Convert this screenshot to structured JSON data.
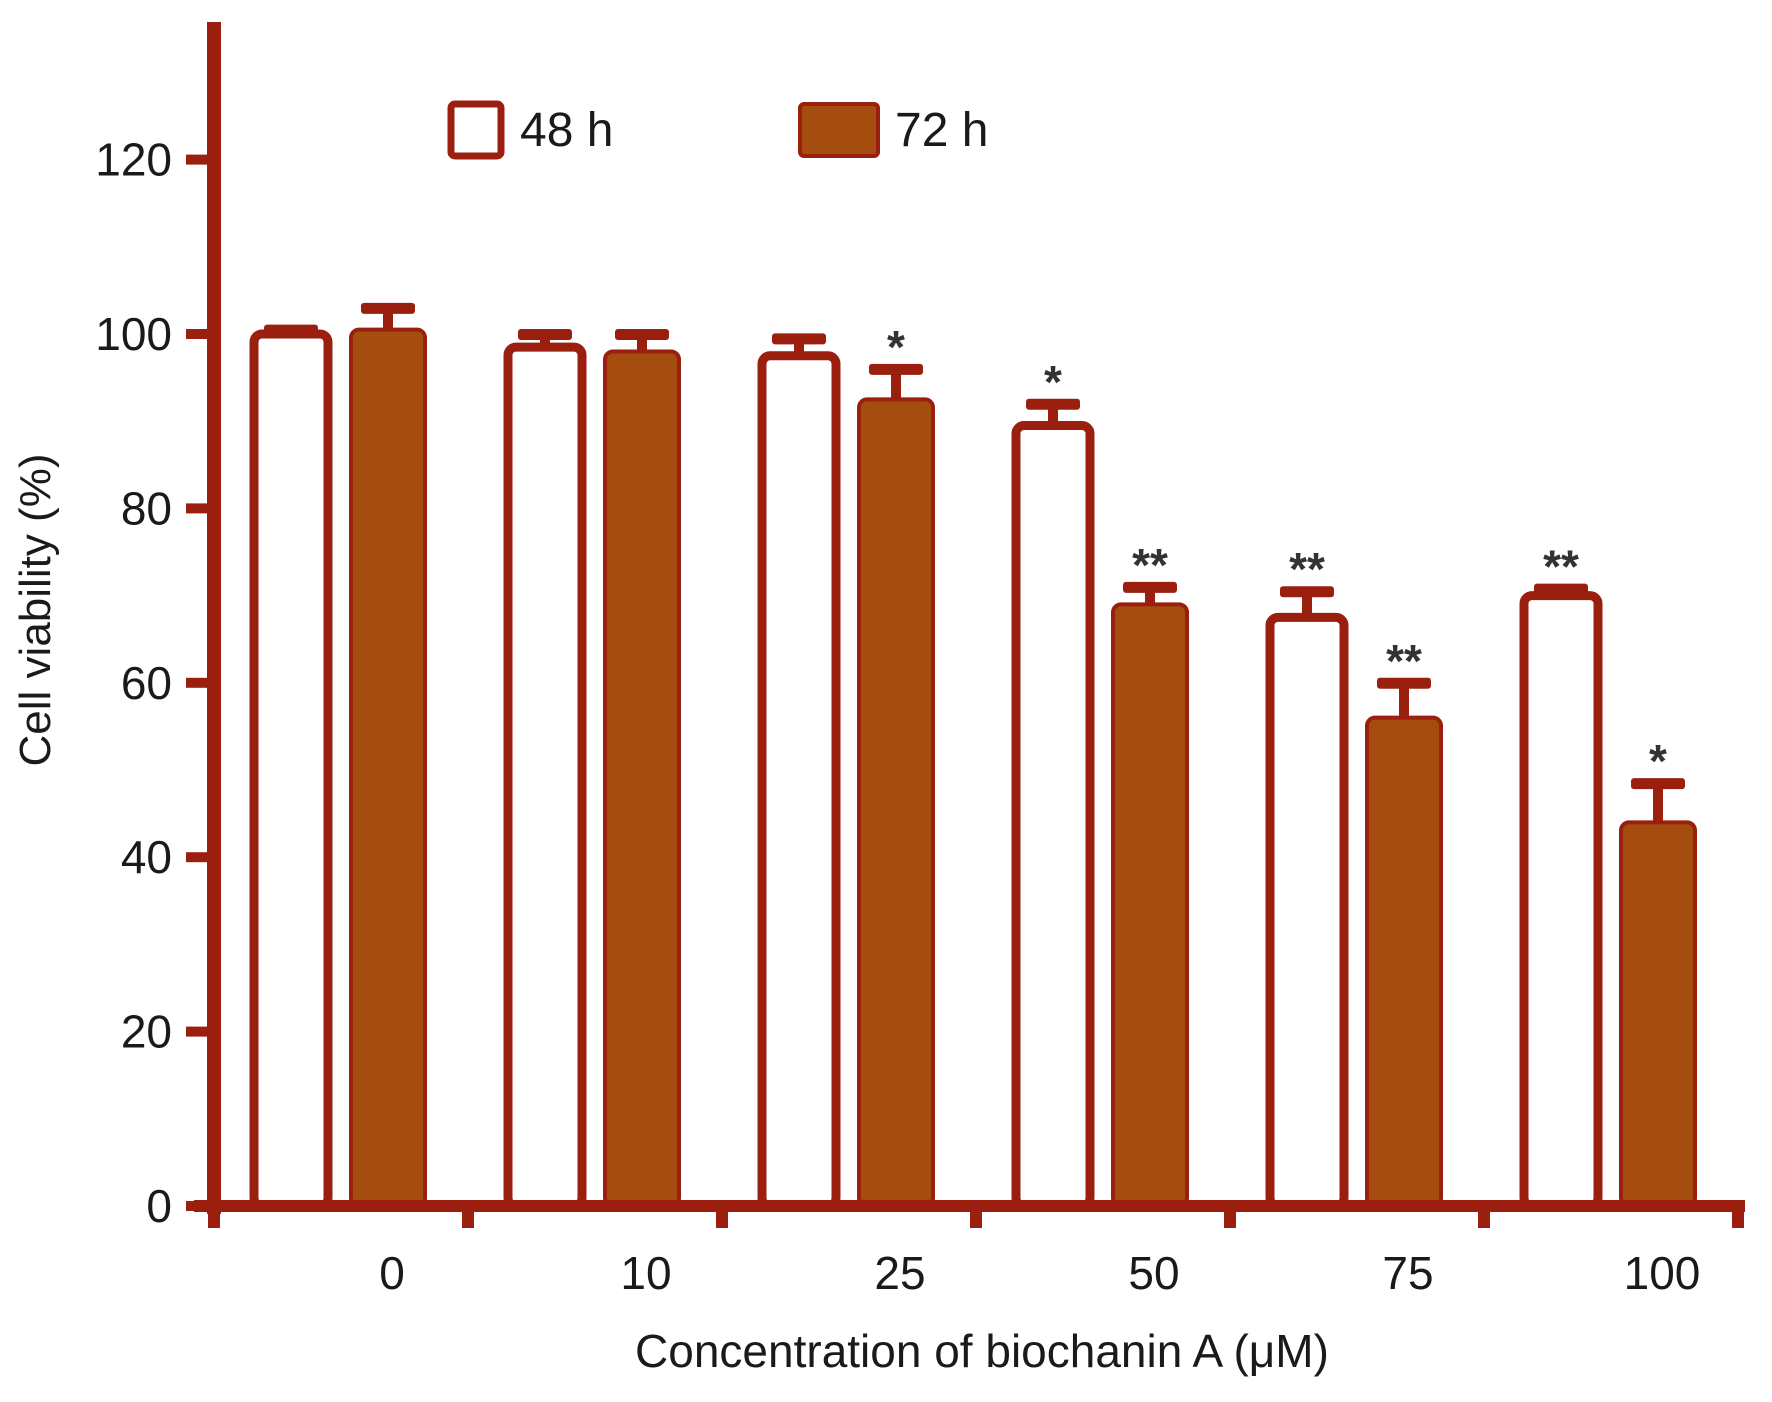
{
  "chart_data": {
    "type": "bar",
    "title": "",
    "xlabel": "Concentration of biochanin A (μM)",
    "ylabel": "Cell viability (%)",
    "categories": [
      "0",
      "10",
      "25",
      "50",
      "75",
      "100"
    ],
    "ylim": [
      0,
      135
    ],
    "yticks": [
      0,
      20,
      40,
      60,
      80,
      100,
      120
    ],
    "legend_position": "top-left",
    "grid": false,
    "colors": {
      "axis": "#9b1f0f",
      "bar_fill": "#a44d0e",
      "bar_edge": "#9b1f0f",
      "open_fill": "#ffffff",
      "text": "#1a1a1a",
      "asterisk": "#333333"
    },
    "series": [
      {
        "name": "48 h",
        "style": "open",
        "values": [
          100,
          98.5,
          97.5,
          89.5,
          67.5,
          70
        ],
        "errors": [
          0.5,
          1.5,
          2,
          2.5,
          3,
          0.8
        ],
        "significance": [
          "",
          "",
          "",
          "*",
          "**",
          "**"
        ]
      },
      {
        "name": "72 h",
        "style": "filled",
        "values": [
          100.5,
          98,
          92.5,
          69,
          56,
          44
        ],
        "errors": [
          2.5,
          2,
          3.5,
          2,
          4,
          4.5
        ],
        "significance": [
          "",
          "",
          "*",
          "**",
          "**",
          "*"
        ]
      }
    ]
  }
}
